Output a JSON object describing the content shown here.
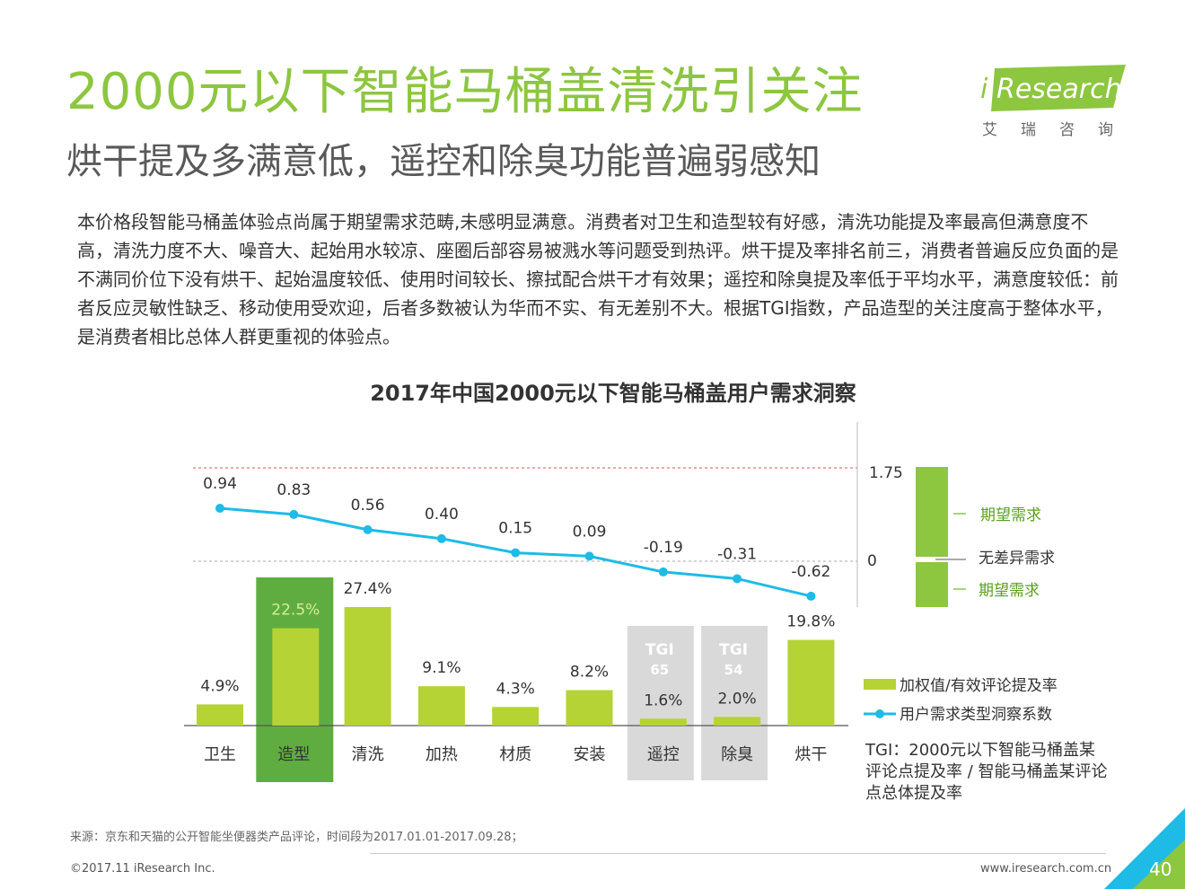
{
  "header": {
    "title": "2000元以下智能马桶盖清洗引关注",
    "subtitle": "烘干提及多满意低，遥控和除臭功能普遍弱感知"
  },
  "logo": {
    "name": "iResearch",
    "cn": "艾瑞咨询",
    "colors": {
      "green": "#8dc63f",
      "dark": "#6a9d1e"
    }
  },
  "body": {
    "text": "本价格段智能马桶盖体验点尚属于期望需求范畴,未感明显满意。消费者对卫生和造型较有好感，清洗功能提及率最高但满意度不高，清洗力度不大、噪音大、起始用水较凉、座圈后部容易被溅水等问题受到热评。烘干提及率排名前三，消费者普遍反应负面的是不满同价位下没有烘干、起始温度较低、使用时间较长、擦拭配合烘干才有效果；遥控和除臭提及率低于平均水平，满意度较低：前者反应灵敏性缺乏、移动使用受欢迎，后者多数被认为华而不实、有无差别不大。根据TGI指数，产品造型的关注度高于整体水平，是消费者相比总体人群更重视的体验点。"
  },
  "chart_data": {
    "type": "bar",
    "title": "2017年中国2000元以下智能马桶盖用户需求洞察",
    "categories": [
      "卫生",
      "造型",
      "清洗",
      "加热",
      "材质",
      "安装",
      "遥控",
      "除臭",
      "烘干"
    ],
    "series": [
      {
        "name": "加权值/有效评论提及率",
        "type": "bar",
        "values": [
          4.9,
          22.5,
          27.4,
          9.1,
          4.3,
          8.2,
          1.6,
          2.0,
          19.8
        ],
        "labels": [
          "4.9%",
          "22.5%",
          "27.4%",
          "9.1%",
          "4.3%",
          "8.2%",
          "1.6%",
          "2.0%",
          "19.8%"
        ],
        "color": "#b5d334"
      },
      {
        "name": "用户需求类型洞察系数",
        "type": "line",
        "values": [
          0.94,
          0.83,
          0.56,
          0.4,
          0.15,
          0.09,
          -0.19,
          -0.31,
          -0.62
        ],
        "labels": [
          "0.94",
          "0.83",
          "0.56",
          "0.40",
          "0.15",
          "0.09",
          "-0.19",
          "-0.31",
          "-0.62"
        ],
        "color": "#1ebbe6"
      }
    ],
    "highlight": {
      "category": "造型",
      "color": "#5fad41"
    },
    "tgi_boxes": [
      {
        "category": "遥控",
        "label": "TGI",
        "value": "65"
      },
      {
        "category": "除臭",
        "label": "TGI",
        "value": "54"
      }
    ],
    "reference_lines": [
      {
        "value": 1.75,
        "style": "dashed",
        "color": "#e05050"
      },
      {
        "value": 0,
        "style": "dashed",
        "color": "#aaaaaa"
      }
    ],
    "right_scale": {
      "ticks": [
        "1.75",
        "0"
      ],
      "bands": [
        {
          "label": "期望需求",
          "position": "upper"
        },
        {
          "label": "无差异需求",
          "position": "middle"
        },
        {
          "label": "期望需求",
          "position": "lower"
        }
      ]
    },
    "legend": "bottom-right"
  },
  "tgi_note": "TGI：2000元以下智能马桶盖某评论点提及率 / 智能马桶盖某评论点总体提及率",
  "footer": {
    "source": "来源：京东和天猫的公开智能坐便器类产品评论，时间段为2017.01.01-2017.09.28；",
    "copyright": "©2017.11 iResearch Inc.",
    "website": "www.iresearch.com.cn",
    "page": "40"
  }
}
